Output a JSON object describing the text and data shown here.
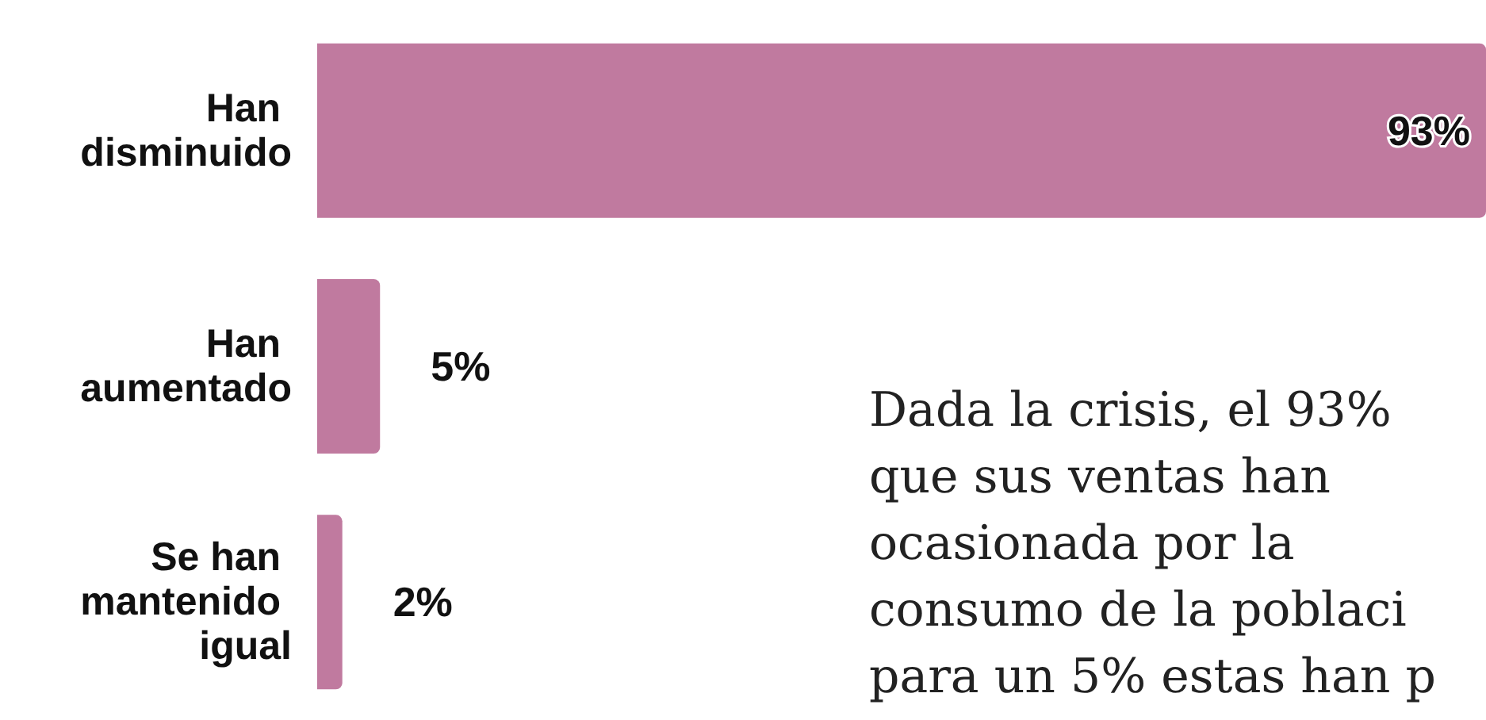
{
  "chart_data": {
    "type": "bar",
    "orientation": "horizontal",
    "categories": [
      "Han disminuido",
      "Han aumentado",
      "Se han mantenido igual"
    ],
    "values": [
      93,
      5,
      2
    ],
    "value_labels": [
      "93%",
      "5%",
      "2%"
    ],
    "color": "#c07a9f",
    "annotations": [
      "Dada la crisis, el 93%\nque sus ventas han\nocasionada por la\nconsumo de la poblaci\npara un 5% estas han p"
    ]
  }
}
